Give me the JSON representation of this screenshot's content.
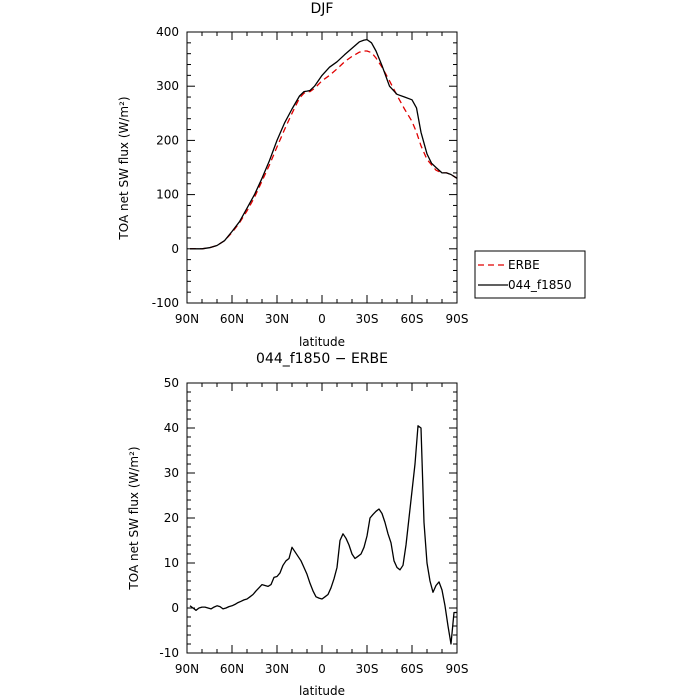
{
  "chart_data": [
    {
      "type": "line",
      "title": "DJF",
      "xlabel": "latitude",
      "ylabel": "TOA net SW flux (W/m²)",
      "xlim": [
        90,
        -90
      ],
      "ylim": [
        -100,
        400
      ],
      "xticks": [
        {
          "value": 90,
          "label": "90N"
        },
        {
          "value": 60,
          "label": "60N"
        },
        {
          "value": 30,
          "label": "30N"
        },
        {
          "value": 0,
          "label": "0"
        },
        {
          "value": -30,
          "label": "30S"
        },
        {
          "value": -60,
          "label": "60S"
        },
        {
          "value": -90,
          "label": "90S"
        }
      ],
      "yticks": [
        -100,
        0,
        100,
        200,
        300,
        400
      ],
      "legend": {
        "placement": "right"
      },
      "series": [
        {
          "name": "ERBE",
          "color": "#e00000",
          "dash": true,
          "x": [
            88,
            80,
            75,
            70,
            65,
            60,
            55,
            50,
            45,
            40,
            35,
            30,
            25,
            20,
            15,
            12,
            10,
            8,
            5,
            0,
            -5,
            -10,
            -15,
            -20,
            -25,
            -28,
            -30,
            -33,
            -36,
            -40,
            -45,
            -50,
            -55,
            -60,
            -63,
            -66,
            -70,
            -73,
            -76,
            -80,
            -83,
            -86,
            -90
          ],
          "y": [
            0,
            0,
            2,
            6,
            15,
            30,
            48,
            70,
            95,
            125,
            155,
            188,
            220,
            250,
            278,
            287,
            290,
            290,
            296,
            310,
            320,
            332,
            345,
            355,
            363,
            365,
            365,
            362,
            352,
            335,
            310,
            283,
            258,
            235,
            215,
            190,
            165,
            155,
            145,
            140,
            140,
            137,
            130
          ]
        },
        {
          "name": "044_f1850",
          "color": "#000000",
          "dash": false,
          "x": [
            88,
            80,
            75,
            70,
            65,
            60,
            55,
            50,
            45,
            40,
            35,
            30,
            25,
            20,
            15,
            12,
            10,
            8,
            5,
            0,
            -5,
            -10,
            -15,
            -20,
            -25,
            -28,
            -30,
            -33,
            -36,
            -40,
            -45,
            -50,
            -55,
            -60,
            -63,
            -66,
            -70,
            -73,
            -76,
            -80,
            -83,
            -86,
            -90
          ],
          "y": [
            0,
            0,
            2,
            6,
            15,
            32,
            50,
            75,
            100,
            130,
            163,
            200,
            232,
            258,
            282,
            290,
            291,
            292,
            300,
            320,
            335,
            345,
            358,
            370,
            382,
            385,
            386,
            380,
            365,
            338,
            300,
            285,
            280,
            275,
            260,
            215,
            175,
            158,
            150,
            140,
            140,
            137,
            130
          ]
        }
      ]
    },
    {
      "type": "line",
      "title": "044_f1850 − ERBE",
      "xlabel": "latitude",
      "ylabel": "TOA net SW flux (W/m²)",
      "xlim": [
        90,
        -90
      ],
      "ylim": [
        -10,
        50
      ],
      "xticks": [
        {
          "value": 90,
          "label": "90N"
        },
        {
          "value": 60,
          "label": "60N"
        },
        {
          "value": 30,
          "label": "30N"
        },
        {
          "value": 0,
          "label": "0"
        },
        {
          "value": -30,
          "label": "30S"
        },
        {
          "value": -60,
          "label": "60S"
        },
        {
          "value": -90,
          "label": "90S"
        }
      ],
      "yticks": [
        -10,
        0,
        10,
        20,
        30,
        40,
        50
      ],
      "series": [
        {
          "name": "",
          "color": "#000000",
          "dash": false,
          "x": [
            88,
            86,
            84,
            82,
            80,
            78,
            76,
            74,
            72,
            70,
            68,
            66,
            64,
            62,
            60,
            58,
            56,
            54,
            52,
            50,
            48,
            46,
            44,
            42,
            40,
            38,
            36,
            34,
            32,
            30,
            28,
            26,
            24,
            22,
            20,
            18,
            16,
            14,
            12,
            10,
            8,
            6,
            4,
            2,
            0,
            -2,
            -4,
            -6,
            -8,
            -10,
            -12,
            -14,
            -16,
            -18,
            -20,
            -22,
            -24,
            -26,
            -28,
            -30,
            -32,
            -34,
            -36,
            -38,
            -40,
            -42,
            -44,
            -46,
            -48,
            -50,
            -52,
            -54,
            -56,
            -58,
            -60,
            -62,
            -64,
            -66,
            -68,
            -70,
            -72,
            -74,
            -76,
            -78,
            -80,
            -82,
            -84,
            -86,
            -88,
            -90
          ],
          "y": [
            0.5,
            0,
            -0.5,
            0,
            0.2,
            0.2,
            0,
            -0.2,
            0.2,
            0.5,
            0.3,
            -0.2,
            0,
            0.3,
            0.5,
            0.8,
            1.2,
            1.5,
            1.8,
            2,
            2.5,
            3,
            3.8,
            4.5,
            5.2,
            5,
            4.8,
            5.2,
            6.8,
            7,
            7.8,
            9.5,
            10.5,
            11,
            13.5,
            12.5,
            11.5,
            10.5,
            9,
            7.5,
            5.5,
            3.8,
            2.5,
            2.2,
            2,
            2.5,
            3,
            4.5,
            6.5,
            9,
            15,
            16.5,
            15.5,
            14,
            12,
            11,
            11.5,
            12,
            13.5,
            16,
            20,
            20.8,
            21.5,
            22,
            21,
            19,
            16.5,
            14.5,
            10.5,
            9,
            8.5,
            9.5,
            14,
            20,
            26,
            32,
            40.5,
            40,
            19,
            10,
            6,
            3.5,
            5,
            5.8,
            4,
            0.5,
            -4,
            -8,
            -1,
            -1
          ]
        }
      ]
    }
  ]
}
